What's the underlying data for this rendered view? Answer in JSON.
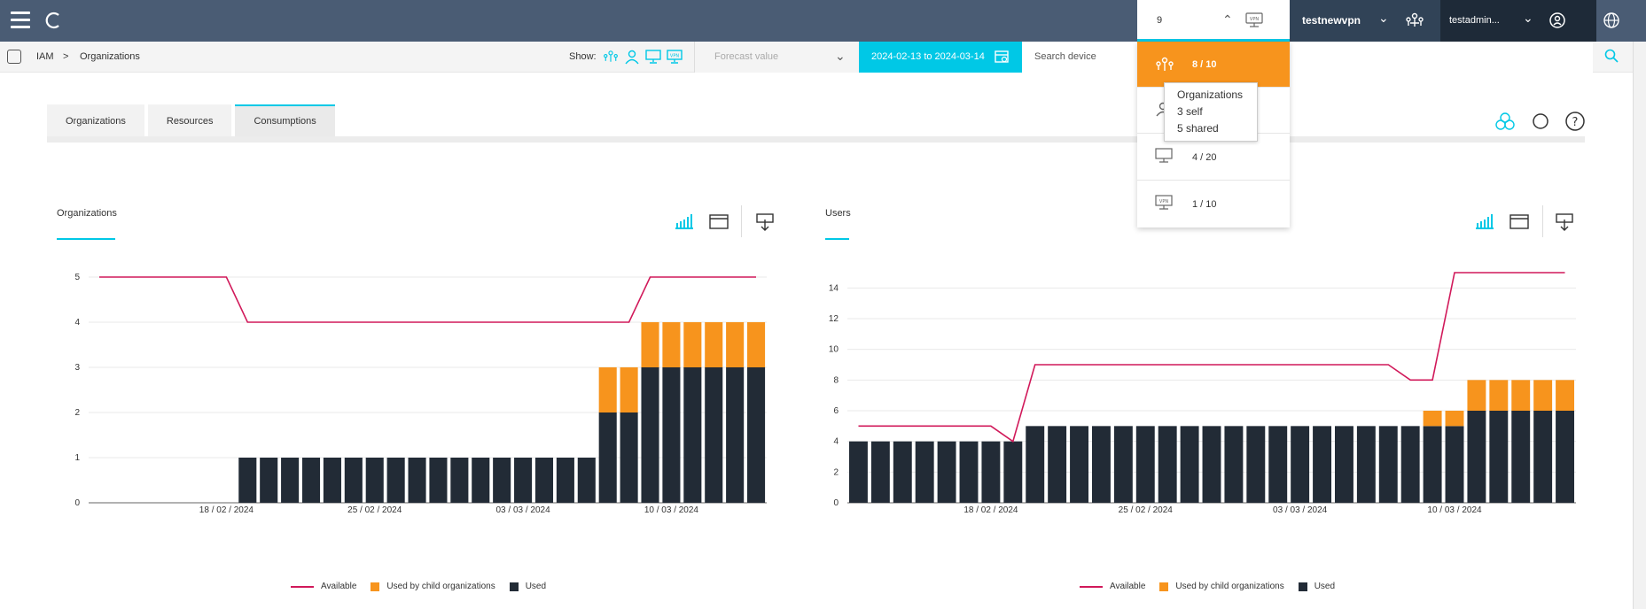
{
  "header": {
    "counter_value": "9",
    "company_name": "testnewvpn",
    "user_name": "testadmin..."
  },
  "breadcrumb": {
    "root": "IAM",
    "separator": ">",
    "current": "Organizations"
  },
  "filters": {
    "show_label": "Show:",
    "forecast_placeholder": "Forecast value",
    "date_range": "2024-02-13 to 2024-03-14",
    "search_placeholder": "Search device"
  },
  "tabs": [
    {
      "label": "Organizations",
      "active": false
    },
    {
      "label": "Resources",
      "active": false
    },
    {
      "label": "Consumptions",
      "active": true
    }
  ],
  "dropdown": {
    "items": [
      {
        "icon": "organization-icon",
        "value": "8 / 10",
        "active": true
      },
      {
        "icon": "user-icon",
        "value": "",
        "active": false
      },
      {
        "icon": "device-icon",
        "value": "4 / 20",
        "active": false
      },
      {
        "icon": "vpn-icon",
        "value": "1 / 10",
        "active": false
      }
    ],
    "tooltip": {
      "title": "Organizations",
      "self": "3 self",
      "shared": "5 shared"
    }
  },
  "colors": {
    "accent": "#00c8e6",
    "available": "#d1195a",
    "child": "#f7941d",
    "used": "#222b36",
    "header": "#4a5c74"
  },
  "legend": {
    "available": "Available",
    "child": "Used by child organizations",
    "used": "Used"
  },
  "panels": [
    {
      "title": "Organizations"
    },
    {
      "title": "Users"
    }
  ],
  "chart_data": [
    {
      "type": "bar",
      "title": "Organizations",
      "x_tick_labels": [
        "18 / 02 / 2024",
        "25 / 02 / 2024",
        "03 / 03 / 2024",
        "10 / 03 / 2024"
      ],
      "ylim": [
        0,
        5
      ],
      "y_ticks": [
        0,
        1,
        2,
        3,
        4,
        5
      ],
      "grid": true,
      "legend_placement": "bottom",
      "series": [
        {
          "name": "Used",
          "values": [
            0,
            0,
            0,
            0,
            0,
            0,
            0,
            1,
            1,
            1,
            1,
            1,
            1,
            1,
            1,
            1,
            1,
            1,
            1,
            1,
            1,
            1,
            1,
            1,
            2,
            2,
            3,
            3,
            3,
            3,
            3,
            3
          ]
        },
        {
          "name": "Used by child organizations",
          "values": [
            0,
            0,
            0,
            0,
            0,
            0,
            0,
            0,
            0,
            0,
            0,
            0,
            0,
            0,
            0,
            0,
            0,
            0,
            0,
            0,
            0,
            0,
            0,
            0,
            1,
            1,
            1,
            1,
            1,
            1,
            1,
            1
          ]
        },
        {
          "name": "Available",
          "values": [
            5,
            5,
            5,
            5,
            5,
            5,
            5,
            4,
            4,
            4,
            4,
            4,
            4,
            4,
            4,
            4,
            4,
            4,
            4,
            4,
            4,
            4,
            4,
            4,
            4,
            4,
            5,
            5,
            5,
            5,
            5,
            5
          ]
        }
      ]
    },
    {
      "type": "bar",
      "title": "Users",
      "x_tick_labels": [
        "18 / 02 / 2024",
        "25 / 02 / 2024",
        "03 / 03 / 2024",
        "10 / 03 / 2024"
      ],
      "ylim": [
        0,
        15
      ],
      "y_ticks": [
        0,
        2,
        4,
        6,
        8,
        10,
        12,
        14
      ],
      "grid": true,
      "legend_placement": "bottom",
      "series": [
        {
          "name": "Used",
          "values": [
            4,
            4,
            4,
            4,
            4,
            4,
            4,
            4,
            5,
            5,
            5,
            5,
            5,
            5,
            5,
            5,
            5,
            5,
            5,
            5,
            5,
            5,
            5,
            5,
            5,
            5,
            5,
            5,
            6,
            6,
            6,
            6,
            6
          ]
        },
        {
          "name": "Used by child organizations",
          "values": [
            0,
            0,
            0,
            0,
            0,
            0,
            0,
            0,
            0,
            0,
            0,
            0,
            0,
            0,
            0,
            0,
            0,
            0,
            0,
            0,
            0,
            0,
            0,
            0,
            0,
            0,
            1,
            1,
            2,
            2,
            2,
            2,
            2
          ]
        },
        {
          "name": "Available",
          "values": [
            5,
            5,
            5,
            5,
            5,
            5,
            5,
            4,
            9,
            9,
            9,
            9,
            9,
            9,
            9,
            9,
            9,
            9,
            9,
            9,
            9,
            9,
            9,
            9,
            9,
            8,
            8,
            15,
            15,
            15,
            15,
            15,
            15
          ]
        }
      ]
    }
  ]
}
